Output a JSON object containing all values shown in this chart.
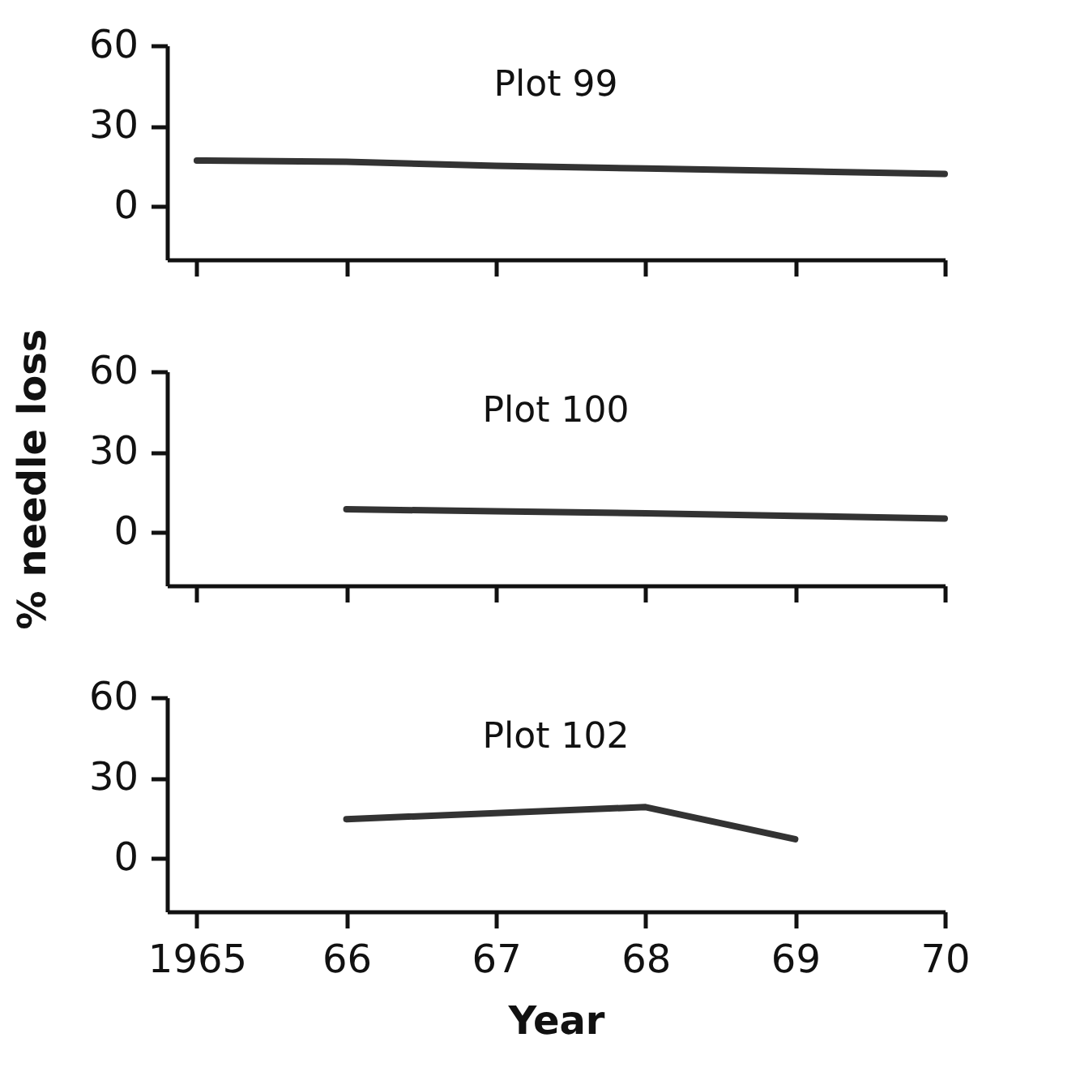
{
  "chart_data": [
    {
      "type": "line",
      "title": "Plot 99",
      "x": [
        1965,
        1966,
        1967,
        1968,
        1969,
        1970
      ],
      "values": [
        17,
        16.5,
        15,
        14,
        13,
        12
      ],
      "color": "#333333",
      "xlim": [
        1964.8,
        1970
      ],
      "xticks": [
        {
          "value": 1965,
          "label": null
        },
        {
          "value": 1966,
          "label": null
        },
        {
          "value": 1967,
          "label": null
        },
        {
          "value": 1968,
          "label": null
        },
        {
          "value": 1969,
          "label": null
        },
        {
          "value": 1970,
          "label": null
        }
      ],
      "ylim": [
        -20,
        60
      ],
      "yticks": [
        0,
        30,
        60
      ],
      "tick_labels": "y",
      "grid": false,
      "marker": "none",
      "line_style": "solid"
    },
    {
      "type": "line",
      "title": "Plot 100",
      "ylabel": "% needle loss",
      "x": [
        1966,
        1967,
        1968,
        1969,
        1970
      ],
      "values": [
        8.5,
        7.7,
        7,
        6,
        5
      ],
      "color": "#333333",
      "xlim": [
        1964.8,
        1970
      ],
      "xticks": [
        {
          "value": 1965,
          "label": null
        },
        {
          "value": 1966,
          "label": null
        },
        {
          "value": 1967,
          "label": null
        },
        {
          "value": 1968,
          "label": null
        },
        {
          "value": 1969,
          "label": null
        },
        {
          "value": 1970,
          "label": null
        }
      ],
      "ylim": [
        -20,
        60
      ],
      "yticks": [
        0,
        30,
        60
      ],
      "tick_labels": "y",
      "grid": false,
      "marker": "none",
      "line_style": "solid"
    },
    {
      "type": "line",
      "title": "Plot 102",
      "xlabel": "Year",
      "x": [
        1966,
        1968,
        1969
      ],
      "values": [
        14.5,
        19,
        7
      ],
      "color": "#333333",
      "xlim": [
        1964.8,
        1970
      ],
      "xticks": [
        {
          "value": 1965,
          "label": "1965"
        },
        {
          "value": 1966,
          "label": "66"
        },
        {
          "value": 1967,
          "label": "67"
        },
        {
          "value": 1968,
          "label": "68"
        },
        {
          "value": 1969,
          "label": "69"
        },
        {
          "value": 1970,
          "label": "70"
        }
      ],
      "ylim": [
        -20,
        60
      ],
      "yticks": [
        0,
        30,
        60
      ],
      "grid": false,
      "marker": "none",
      "line_style": "solid"
    }
  ]
}
